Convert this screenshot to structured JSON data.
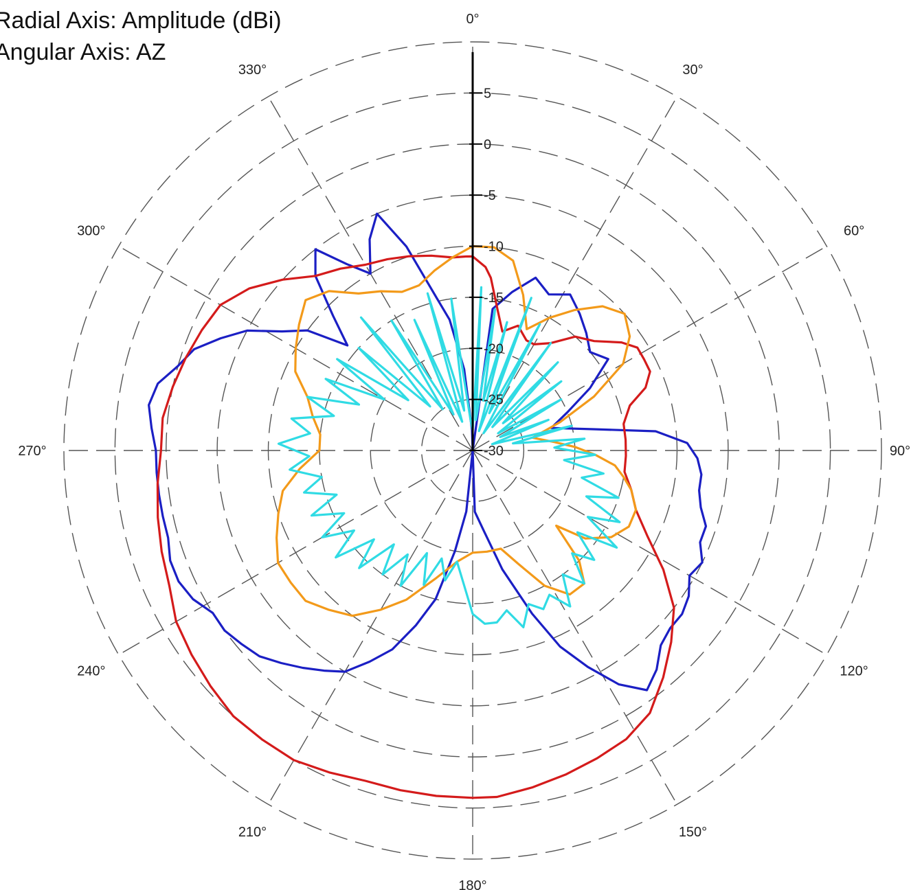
{
  "chart_data": {
    "type": "polar-line",
    "radial_axis_title": "Radial Axis: Amplitude (dBi)",
    "angular_axis_title": "Angular Axis: AZ",
    "rlim": [
      -30,
      10
    ],
    "radial_ticks": [
      "5",
      "0",
      "-5",
      "-10",
      "-15",
      "-20",
      "-25",
      "-30"
    ],
    "radial_tick_values": [
      5,
      0,
      -5,
      -10,
      -15,
      -20,
      -25,
      -30
    ],
    "angular_ticks": [
      "0°",
      "30°",
      "60°",
      "90°",
      "120°",
      "150°",
      "180°",
      "210°",
      "240°",
      "270°",
      "300°",
      "330°"
    ],
    "angular_tick_values": [
      0,
      30,
      60,
      90,
      120,
      150,
      180,
      210,
      240,
      270,
      300,
      330
    ],
    "grid": true,
    "series": [
      {
        "color": "#1b1fc4",
        "points": [
          [
            0,
            -30
          ],
          [
            8,
            -16
          ],
          [
            14,
            -14
          ],
          [
            20,
            -12
          ],
          [
            26,
            -13
          ],
          [
            32,
            -12
          ],
          [
            38,
            -13
          ],
          [
            44,
            -14
          ],
          [
            50,
            -15
          ],
          [
            56,
            -14
          ],
          [
            62,
            -17
          ],
          [
            68,
            -20
          ],
          [
            74,
            -22
          ],
          [
            80,
            -18
          ],
          [
            84,
            -12
          ],
          [
            88,
            -9
          ],
          [
            92,
            -8
          ],
          [
            96,
            -7.5
          ],
          [
            100,
            -7.5
          ],
          [
            104,
            -7
          ],
          [
            108,
            -6
          ],
          [
            112,
            -6
          ],
          [
            116,
            -5
          ],
          [
            120,
            -5.5
          ],
          [
            124,
            -4.5
          ],
          [
            128,
            -4
          ],
          [
            132,
            -4
          ],
          [
            136,
            -3.5
          ],
          [
            140,
            -2
          ],
          [
            144,
            -1
          ],
          [
            148,
            -3
          ],
          [
            152,
            -6
          ],
          [
            156,
            -9
          ],
          [
            160,
            -13
          ],
          [
            166,
            -18
          ],
          [
            172,
            -22
          ],
          [
            178,
            -24
          ],
          [
            180,
            -30
          ],
          [
            186,
            -24
          ],
          [
            190,
            -20
          ],
          [
            194,
            -15
          ],
          [
            198,
            -12
          ],
          [
            202,
            -9
          ],
          [
            206,
            -7
          ],
          [
            210,
            -5
          ],
          [
            214,
            -4
          ],
          [
            218,
            -3
          ],
          [
            222,
            -2
          ],
          [
            226,
            -1
          ],
          [
            230,
            -0.5
          ],
          [
            234,
            0
          ],
          [
            238,
            0
          ],
          [
            242,
            1
          ],
          [
            246,
            1.5
          ],
          [
            250,
            1.5
          ],
          [
            254,
            1
          ],
          [
            258,
            1
          ],
          [
            262,
            1
          ],
          [
            266,
            1
          ],
          [
            270,
            1
          ],
          [
            274,
            1.5
          ],
          [
            278,
            2
          ],
          [
            282,
            1.5
          ],
          [
            286,
            0
          ],
          [
            290,
            -1
          ],
          [
            294,
            -3
          ],
          [
            298,
            -5
          ],
          [
            302,
            -8
          ],
          [
            306,
            -10
          ],
          [
            310,
            -14
          ],
          [
            314,
            -11
          ],
          [
            318,
            -7
          ],
          [
            322,
            -5
          ],
          [
            326,
            -8
          ],
          [
            330,
            -10
          ],
          [
            334,
            -7
          ],
          [
            338,
            -5
          ],
          [
            342,
            -9
          ],
          [
            346,
            -14
          ],
          [
            350,
            -17
          ],
          [
            354,
            -22
          ],
          [
            358,
            -28
          ],
          [
            360,
            -30
          ]
        ]
      },
      {
        "color": "#d41b1b",
        "points": [
          [
            0,
            -11
          ],
          [
            4,
            -12
          ],
          [
            6,
            -13
          ],
          [
            10,
            -16
          ],
          [
            14,
            -18
          ],
          [
            20,
            -17
          ],
          [
            26,
            -18
          ],
          [
            30,
            -18
          ],
          [
            36,
            -17
          ],
          [
            42,
            -15
          ],
          [
            48,
            -14
          ],
          [
            54,
            -12
          ],
          [
            58,
            -11
          ],
          [
            62,
            -11
          ],
          [
            66,
            -11
          ],
          [
            70,
            -12
          ],
          [
            74,
            -14
          ],
          [
            80,
            -15
          ],
          [
            86,
            -15
          ],
          [
            92,
            -15
          ],
          [
            98,
            -15
          ],
          [
            104,
            -14
          ],
          [
            110,
            -13
          ],
          [
            116,
            -11
          ],
          [
            122,
            -8
          ],
          [
            128,
            -5
          ],
          [
            134,
            -3
          ],
          [
            140,
            -1
          ],
          [
            146,
            1
          ],
          [
            152,
            2
          ],
          [
            158,
            2.5
          ],
          [
            164,
            3
          ],
          [
            170,
            3.5
          ],
          [
            176,
            4
          ],
          [
            180,
            4
          ],
          [
            186,
            4
          ],
          [
            192,
            4
          ],
          [
            198,
            4
          ],
          [
            204,
            4.5
          ],
          [
            210,
            5
          ],
          [
            216,
            5
          ],
          [
            222,
            5
          ],
          [
            228,
            4.5
          ],
          [
            234,
            4
          ],
          [
            240,
            3.5
          ],
          [
            246,
            2.5
          ],
          [
            252,
            2
          ],
          [
            258,
            1.5
          ],
          [
            264,
            1
          ],
          [
            270,
            0.5
          ],
          [
            276,
            0.5
          ],
          [
            282,
            0
          ],
          [
            288,
            -0.5
          ],
          [
            294,
            -1
          ],
          [
            300,
            -1.5
          ],
          [
            306,
            -3
          ],
          [
            312,
            -5
          ],
          [
            318,
            -7
          ],
          [
            324,
            -8
          ],
          [
            330,
            -9
          ],
          [
            336,
            -9.5
          ],
          [
            342,
            -10
          ],
          [
            348,
            -10.5
          ],
          [
            354,
            -11
          ],
          [
            358,
            -11
          ],
          [
            360,
            -11
          ]
        ]
      },
      {
        "color": "#f39a1a",
        "points": [
          [
            0,
            -10
          ],
          [
            6,
            -10
          ],
          [
            12,
            -11
          ],
          [
            18,
            -14
          ],
          [
            24,
            -17
          ],
          [
            30,
            -15
          ],
          [
            36,
            -13
          ],
          [
            42,
            -11
          ],
          [
            48,
            -10
          ],
          [
            54,
            -11
          ],
          [
            60,
            -13
          ],
          [
            66,
            -17
          ],
          [
            72,
            -21
          ],
          [
            78,
            -24
          ],
          [
            84,
            -22
          ],
          [
            88,
            -20
          ],
          [
            92,
            -18
          ],
          [
            96,
            -16
          ],
          [
            100,
            -15
          ],
          [
            104,
            -14
          ],
          [
            110,
            -13
          ],
          [
            116,
            -13
          ],
          [
            122,
            -14
          ],
          [
            128,
            -16
          ],
          [
            132,
            -19
          ],
          [
            136,
            -15
          ],
          [
            140,
            -13
          ],
          [
            146,
            -13
          ],
          [
            152,
            -15
          ],
          [
            158,
            -18
          ],
          [
            164,
            -20
          ],
          [
            172,
            -20
          ],
          [
            180,
            -20
          ],
          [
            188,
            -19
          ],
          [
            196,
            -17
          ],
          [
            204,
            -14
          ],
          [
            210,
            -12
          ],
          [
            216,
            -10
          ],
          [
            222,
            -9
          ],
          [
            228,
            -8
          ],
          [
            234,
            -8
          ],
          [
            240,
            -8
          ],
          [
            246,
            -9
          ],
          [
            252,
            -10
          ],
          [
            258,
            -11
          ],
          [
            264,
            -13
          ],
          [
            270,
            -15
          ],
          [
            276,
            -15
          ],
          [
            282,
            -14
          ],
          [
            288,
            -13
          ],
          [
            294,
            -11
          ],
          [
            300,
            -10
          ],
          [
            306,
            -9
          ],
          [
            312,
            -8
          ],
          [
            318,
            -9
          ],
          [
            324,
            -11
          ],
          [
            330,
            -12
          ],
          [
            336,
            -13
          ],
          [
            342,
            -13
          ],
          [
            348,
            -12
          ],
          [
            354,
            -11
          ],
          [
            360,
            -10
          ]
        ]
      },
      {
        "color": "#30dbe4",
        "points": [
          [
            0,
            -28
          ],
          [
            3,
            -14
          ],
          [
            6,
            -27
          ],
          [
            9,
            -16
          ],
          [
            12,
            -25
          ],
          [
            15,
            -17
          ],
          [
            18,
            -28
          ],
          [
            21,
            -14
          ],
          [
            24,
            -26
          ],
          [
            28,
            -16
          ],
          [
            32,
            -28
          ],
          [
            36,
            -17
          ],
          [
            40,
            -27
          ],
          [
            44,
            -18
          ],
          [
            48,
            -26
          ],
          [
            52,
            -19
          ],
          [
            56,
            -27
          ],
          [
            60,
            -20
          ],
          [
            64,
            -27
          ],
          [
            68,
            -22
          ],
          [
            72,
            -28
          ],
          [
            76,
            -20
          ],
          [
            80,
            -26
          ],
          [
            84,
            -19
          ],
          [
            88,
            -22
          ],
          [
            92,
            -18
          ],
          [
            96,
            -21
          ],
          [
            100,
            -17
          ],
          [
            104,
            -19
          ],
          [
            108,
            -15
          ],
          [
            112,
            -18
          ],
          [
            116,
            -14
          ],
          [
            120,
            -17
          ],
          [
            124,
            -13
          ],
          [
            128,
            -17
          ],
          [
            132,
            -14
          ],
          [
            136,
            -16
          ],
          [
            140,
            -13
          ],
          [
            144,
            -15
          ],
          [
            148,
            -12
          ],
          [
            152,
            -14
          ],
          [
            156,
            -13
          ],
          [
            160,
            -14
          ],
          [
            164,
            -12
          ],
          [
            168,
            -14
          ],
          [
            172,
            -13
          ],
          [
            176,
            -13
          ],
          [
            180,
            -14
          ],
          [
            184,
            -17
          ],
          [
            188,
            -19
          ],
          [
            192,
            -17
          ],
          [
            196,
            -19
          ],
          [
            200,
            -16
          ],
          [
            204,
            -19
          ],
          [
            208,
            -15
          ],
          [
            212,
            -18
          ],
          [
            216,
            -15
          ],
          [
            220,
            -18
          ],
          [
            224,
            -14
          ],
          [
            228,
            -17
          ],
          [
            232,
            -13
          ],
          [
            236,
            -16
          ],
          [
            240,
            -13
          ],
          [
            244,
            -16
          ],
          [
            248,
            -13
          ],
          [
            252,
            -16
          ],
          [
            256,
            -13
          ],
          [
            260,
            -15
          ],
          [
            264,
            -12
          ],
          [
            268,
            -14
          ],
          [
            272,
            -11
          ],
          [
            276,
            -14
          ],
          [
            280,
            -12
          ],
          [
            284,
            -16
          ],
          [
            288,
            -13
          ],
          [
            292,
            -18
          ],
          [
            296,
            -14
          ],
          [
            300,
            -20
          ],
          [
            304,
            -14
          ],
          [
            308,
            -22
          ],
          [
            312,
            -15
          ],
          [
            316,
            -24
          ],
          [
            320,
            -13
          ],
          [
            324,
            -25
          ],
          [
            328,
            -15
          ],
          [
            332,
            -26
          ],
          [
            336,
            -16
          ],
          [
            340,
            -27
          ],
          [
            344,
            -14
          ],
          [
            348,
            -26
          ],
          [
            352,
            -15
          ],
          [
            356,
            -27
          ],
          [
            360,
            -28
          ]
        ]
      }
    ]
  },
  "ui": {
    "radial_title": "Radial Axis: Amplitude (dBi)",
    "angular_title": "Angular Axis: AZ"
  }
}
